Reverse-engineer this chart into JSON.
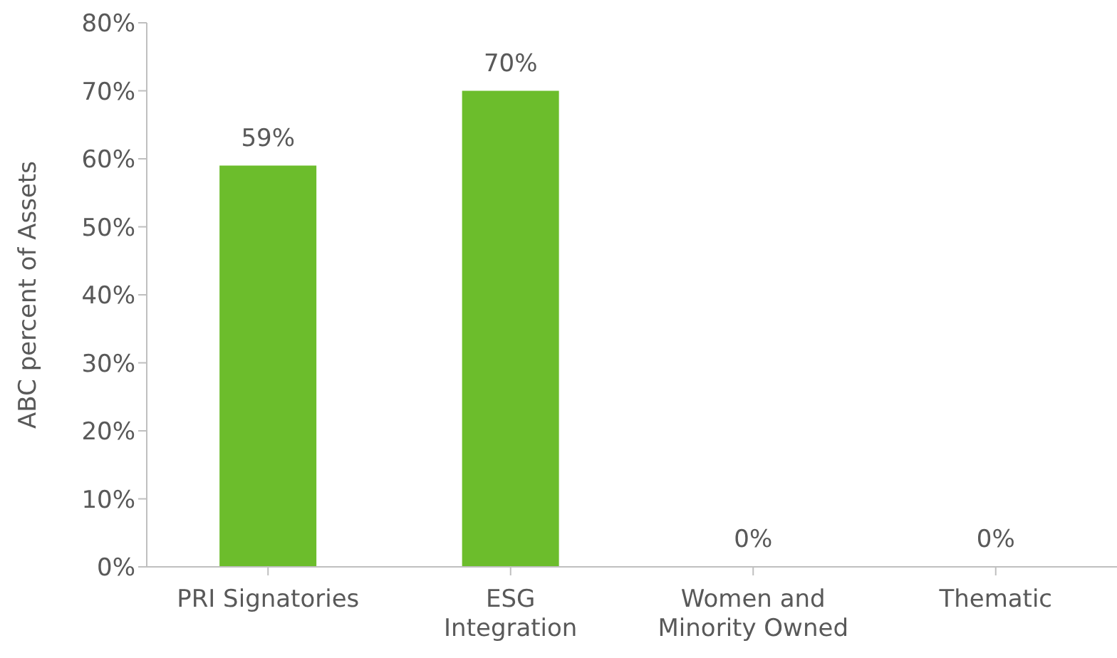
{
  "chart_data": {
    "type": "bar",
    "ylabel": "ABC percent of Assets",
    "categories": [
      "PRI Signatories",
      "ESG\nIntegration",
      "Women and\nMinority Owned",
      "Thematic"
    ],
    "values": [
      59,
      70,
      0,
      0
    ],
    "color": "#6cbd2c",
    "value_labels": [
      "59%",
      "70%",
      "0%",
      "0%"
    ],
    "ylim": [
      0,
      80
    ],
    "yticks": [
      {
        "value": 0,
        "label": "0%"
      },
      {
        "value": 10,
        "label": "10%"
      },
      {
        "value": 20,
        "label": "20%"
      },
      {
        "value": 30,
        "label": "30%"
      },
      {
        "value": 40,
        "label": "40%"
      },
      {
        "value": 50,
        "label": "50%"
      },
      {
        "value": 60,
        "label": "60%"
      },
      {
        "value": 70,
        "label": "70%"
      },
      {
        "value": 80,
        "label": "80%"
      }
    ],
    "grid": false,
    "legend": false
  }
}
